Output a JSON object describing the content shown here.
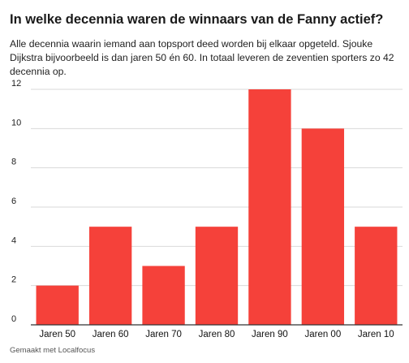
{
  "title": "In welke decennia waren de winnaars van de Fanny actief?",
  "subtitle": "Alle decennia waarin iemand aan topsport deed worden bij elkaar opgeteld. Sjouke Dijkstra bijvoorbeeld is dan jaren 50 én 60. In totaal leveren de zeventien sporters zo 42 decennia op.",
  "credit": "Gemaakt met Localfocus",
  "colors": {
    "bar": "#f5413a",
    "grid": "#d9d9d9",
    "axis": "#333333"
  },
  "chart_data": {
    "type": "bar",
    "categories": [
      "Jaren 50",
      "Jaren 60",
      "Jaren 70",
      "Jaren 80",
      "Jaren 90",
      "Jaren 00",
      "Jaren 10"
    ],
    "values": [
      2,
      5,
      3,
      5,
      12,
      10,
      5
    ],
    "yticks": [
      0,
      2,
      4,
      6,
      8,
      10,
      12
    ],
    "ylim": [
      0,
      12
    ],
    "grid": true,
    "legend": "none"
  }
}
